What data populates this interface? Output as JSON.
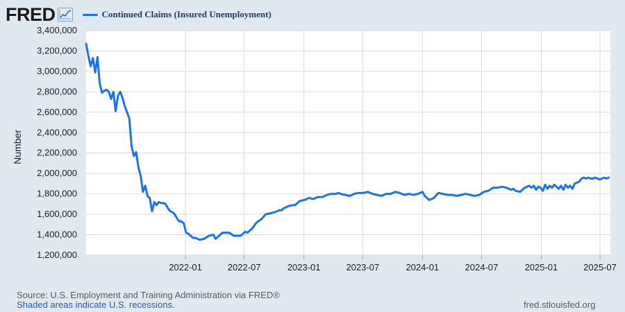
{
  "brand": {
    "name": "FRED"
  },
  "colors": {
    "series": "#1a73e8",
    "background": "#e1e9f0",
    "plot": "#ffffff",
    "grid": "#d9d9d9"
  },
  "footer": {
    "source": "Source: U.S. Employment and Training Administration via FRED®",
    "recession_note": "Shaded areas indicate U.S. recessions.",
    "url": "fred.stlouisfed.org"
  },
  "chart_data": {
    "type": "line",
    "xlabel": "",
    "ylabel": "Number",
    "ylim": [
      1200000,
      3400000
    ],
    "xlim": [
      "2021-03-01",
      "2025-08-02"
    ],
    "yticks": [
      1200000,
      1400000,
      1600000,
      1800000,
      2000000,
      2200000,
      2400000,
      2600000,
      2800000,
      3000000,
      3200000,
      3400000
    ],
    "ytick_labels": [
      "1,200,000",
      "1,400,000",
      "1,600,000",
      "1,800,000",
      "2,000,000",
      "2,200,000",
      "2,400,000",
      "2,600,000",
      "2,800,000",
      "3,000,000",
      "3,200,000",
      "3,400,000"
    ],
    "xticks": [
      "2022-01-01",
      "2022-07-01",
      "2023-01-01",
      "2023-07-01",
      "2024-01-01",
      "2024-07-01",
      "2025-01-01",
      "2025-07-01"
    ],
    "xtick_labels": [
      "2022-01",
      "2022-07",
      "2023-01",
      "2023-07",
      "2024-01",
      "2024-07",
      "2025-01",
      "2025-07"
    ],
    "grid": true,
    "legend": "top-left",
    "series": [
      {
        "name": "Continued Claims (Insured Unemployment)",
        "x": [
          "2021-03-01",
          "2021-03-08",
          "2021-03-15",
          "2021-03-22",
          "2021-03-29",
          "2021-04-05",
          "2021-04-12",
          "2021-04-19",
          "2021-04-26",
          "2021-05-03",
          "2021-05-10",
          "2021-05-17",
          "2021-05-24",
          "2021-05-31",
          "2021-06-07",
          "2021-06-14",
          "2021-06-21",
          "2021-06-28",
          "2021-07-05",
          "2021-07-12",
          "2021-07-19",
          "2021-07-26",
          "2021-08-02",
          "2021-08-09",
          "2021-08-16",
          "2021-08-23",
          "2021-08-30",
          "2021-09-06",
          "2021-09-13",
          "2021-09-20",
          "2021-09-27",
          "2021-10-04",
          "2021-10-11",
          "2021-10-18",
          "2021-10-25",
          "2021-11-01",
          "2021-11-08",
          "2021-11-15",
          "2021-11-22",
          "2021-11-29",
          "2021-12-06",
          "2021-12-13",
          "2021-12-20",
          "2021-12-27",
          "2022-01-03",
          "2022-01-10",
          "2022-01-17",
          "2022-01-24",
          "2022-01-31",
          "2022-02-14",
          "2022-02-28",
          "2022-03-14",
          "2022-03-28",
          "2022-04-04",
          "2022-04-11",
          "2022-04-18",
          "2022-04-25",
          "2022-05-02",
          "2022-05-16",
          "2022-05-30",
          "2022-06-13",
          "2022-06-20",
          "2022-06-27",
          "2022-07-04",
          "2022-07-11",
          "2022-07-25",
          "2022-08-08",
          "2022-08-22",
          "2022-09-05",
          "2022-09-19",
          "2022-10-03",
          "2022-10-17",
          "2022-10-24",
          "2022-10-31",
          "2022-11-14",
          "2022-11-28",
          "2022-12-05",
          "2022-12-12",
          "2022-12-19",
          "2023-01-02",
          "2023-01-16",
          "2023-01-30",
          "2023-02-13",
          "2023-02-27",
          "2023-03-13",
          "2023-03-27",
          "2023-04-10",
          "2023-04-17",
          "2023-04-24",
          "2023-05-08",
          "2023-05-22",
          "2023-06-05",
          "2023-06-19",
          "2023-07-03",
          "2023-07-17",
          "2023-07-31",
          "2023-08-14",
          "2023-08-28",
          "2023-09-11",
          "2023-09-25",
          "2023-10-09",
          "2023-10-23",
          "2023-11-06",
          "2023-11-20",
          "2023-12-04",
          "2023-12-18",
          "2024-01-01",
          "2024-01-08",
          "2024-01-15",
          "2024-01-22",
          "2024-02-05",
          "2024-02-19",
          "2024-03-04",
          "2024-03-18",
          "2024-04-01",
          "2024-04-15",
          "2024-04-29",
          "2024-05-13",
          "2024-05-27",
          "2024-06-10",
          "2024-06-24",
          "2024-07-08",
          "2024-07-22",
          "2024-08-05",
          "2024-08-19",
          "2024-09-02",
          "2024-09-16",
          "2024-09-30",
          "2024-10-07",
          "2024-10-14",
          "2024-10-28",
          "2024-11-11",
          "2024-11-25",
          "2024-12-02",
          "2024-12-09",
          "2024-12-16",
          "2024-12-23",
          "2024-12-30",
          "2025-01-06",
          "2025-01-13",
          "2025-01-20",
          "2025-01-27",
          "2025-02-03",
          "2025-02-10",
          "2025-02-17",
          "2025-02-24",
          "2025-03-03",
          "2025-03-10",
          "2025-03-17",
          "2025-03-24",
          "2025-03-31",
          "2025-04-07",
          "2025-04-14",
          "2025-04-21",
          "2025-04-28",
          "2025-05-05",
          "2025-05-12",
          "2025-05-19",
          "2025-05-26",
          "2025-06-02",
          "2025-06-09",
          "2025-06-16",
          "2025-06-23",
          "2025-06-30",
          "2025-07-07",
          "2025-07-14",
          "2025-07-21",
          "2025-07-28"
        ],
        "y": [
          3270000,
          3150000,
          3050000,
          3130000,
          2990000,
          3140000,
          2880000,
          2790000,
          2810000,
          2820000,
          2800000,
          2730000,
          2800000,
          2610000,
          2760000,
          2800000,
          2740000,
          2660000,
          2600000,
          2540000,
          2270000,
          2170000,
          2210000,
          2060000,
          1980000,
          1820000,
          1880000,
          1780000,
          1760000,
          1630000,
          1720000,
          1690000,
          1720000,
          1710000,
          1710000,
          1700000,
          1660000,
          1630000,
          1620000,
          1600000,
          1560000,
          1530000,
          1530000,
          1510000,
          1420000,
          1410000,
          1390000,
          1370000,
          1370000,
          1350000,
          1360000,
          1390000,
          1400000,
          1360000,
          1380000,
          1400000,
          1420000,
          1420000,
          1420000,
          1390000,
          1390000,
          1390000,
          1410000,
          1430000,
          1420000,
          1460000,
          1520000,
          1550000,
          1600000,
          1610000,
          1620000,
          1640000,
          1640000,
          1660000,
          1680000,
          1690000,
          1690000,
          1710000,
          1730000,
          1740000,
          1760000,
          1750000,
          1770000,
          1770000,
          1790000,
          1800000,
          1800000,
          1810000,
          1800000,
          1790000,
          1780000,
          1800000,
          1810000,
          1810000,
          1820000,
          1800000,
          1790000,
          1780000,
          1800000,
          1800000,
          1820000,
          1810000,
          1790000,
          1800000,
          1790000,
          1800000,
          1820000,
          1780000,
          1760000,
          1740000,
          1760000,
          1810000,
          1800000,
          1790000,
          1790000,
          1780000,
          1790000,
          1800000,
          1790000,
          1780000,
          1790000,
          1820000,
          1830000,
          1860000,
          1860000,
          1870000,
          1860000,
          1840000,
          1850000,
          1830000,
          1820000,
          1860000,
          1880000,
          1860000,
          1880000,
          1840000,
          1870000,
          1860000,
          1830000,
          1890000,
          1850000,
          1880000,
          1860000,
          1890000,
          1870000,
          1850000,
          1880000,
          1840000,
          1890000,
          1860000,
          1880000,
          1850000,
          1900000,
          1910000,
          1920000,
          1950000,
          1960000,
          1950000,
          1960000,
          1950000,
          1950000,
          1960000,
          1950000,
          1940000,
          1950000,
          1960000,
          1950000,
          1960000
        ]
      }
    ]
  }
}
